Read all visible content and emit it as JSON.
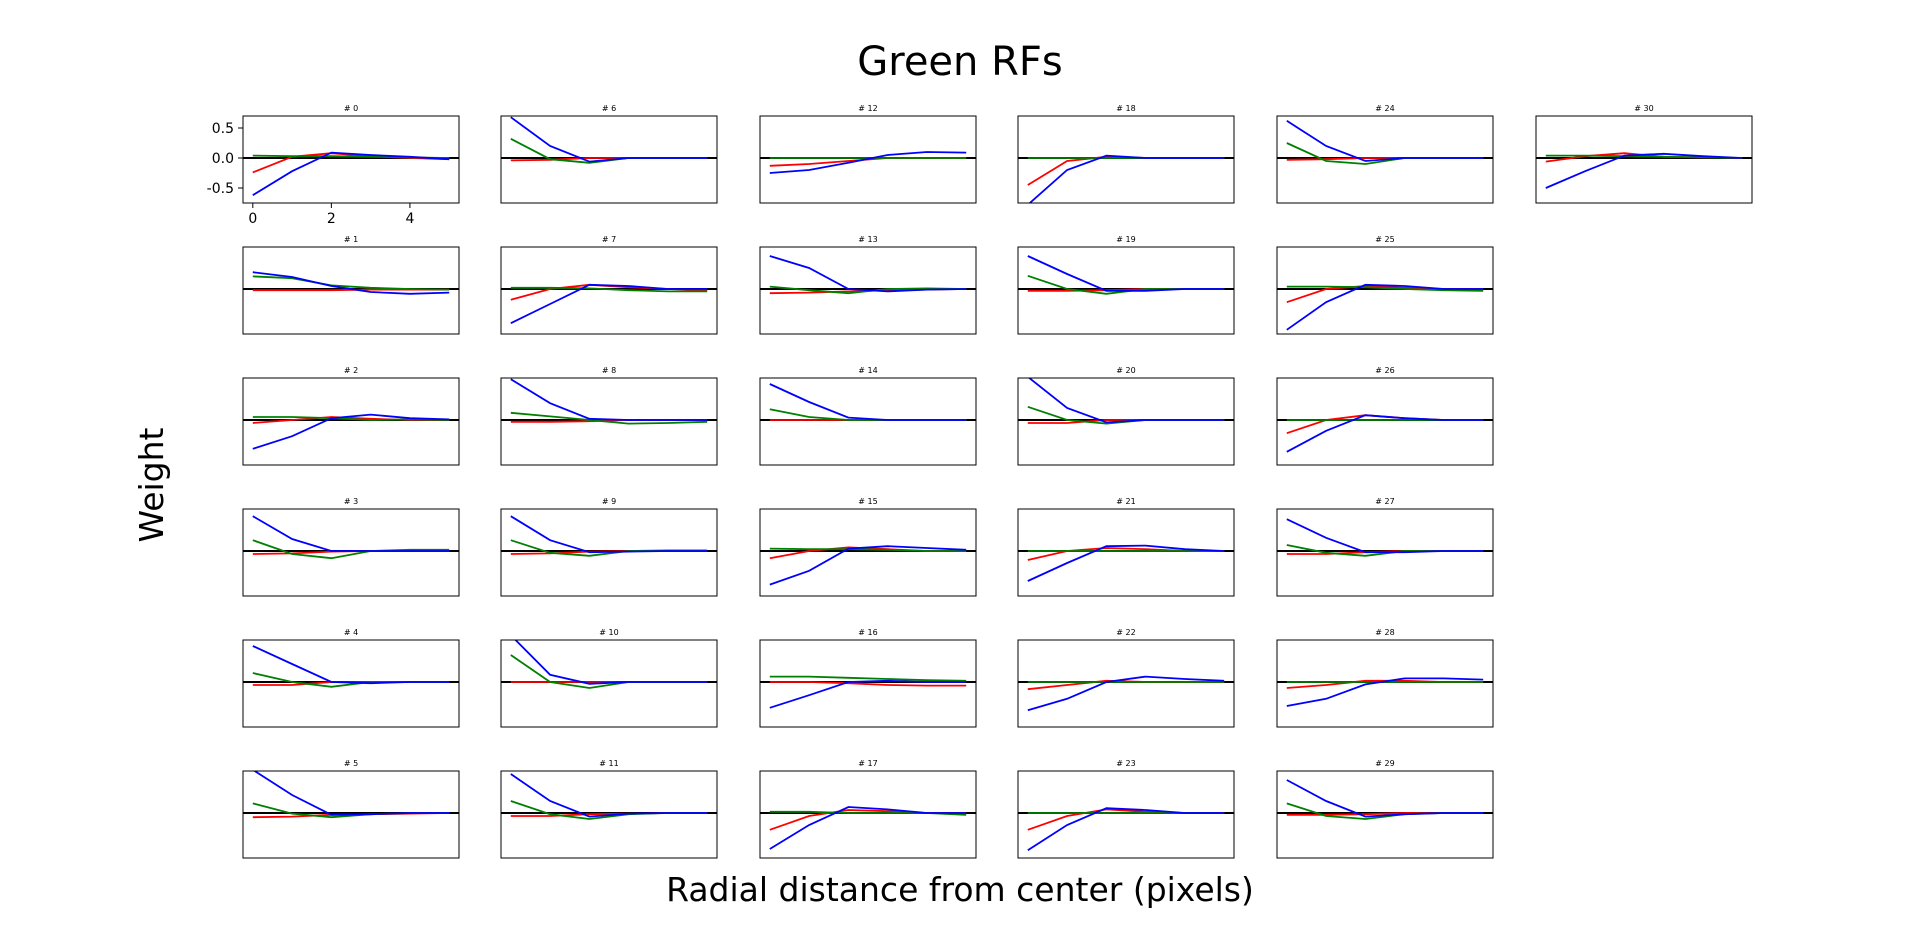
{
  "figure": {
    "title": "Green RFs",
    "xlabel": "Radial distance from center (pixels)",
    "ylabel": "Weight"
  },
  "colors": {
    "red": "#ff0000",
    "green": "#008000",
    "blue": "#0000ff",
    "axis": "#000000"
  },
  "chart_data": {
    "type": "line",
    "x": [
      0,
      1,
      2,
      3,
      4,
      5
    ],
    "xlim": [
      -0.25,
      5.25
    ],
    "ylim": [
      -0.75,
      0.7
    ],
    "xticks": [
      "0",
      "2",
      "4"
    ],
    "yticks": [
      "0.5",
      "0.0",
      "-0.5"
    ],
    "grid": false,
    "legend": "none",
    "panels": [
      {
        "title": "# 0",
        "red": [
          -0.24,
          0.02,
          0.08,
          0.03,
          0.0,
          -0.02
        ],
        "green": [
          0.04,
          0.03,
          0.03,
          0.02,
          0.01,
          0.0
        ],
        "blue": [
          -0.62,
          -0.22,
          0.09,
          0.05,
          0.02,
          -0.02
        ]
      },
      {
        "title": "# 1",
        "red": [
          -0.02,
          -0.02,
          -0.02,
          -0.01,
          -0.01,
          -0.01
        ],
        "green": [
          0.21,
          0.18,
          0.06,
          0.02,
          0.0,
          -0.01
        ],
        "blue": [
          0.28,
          0.2,
          0.05,
          -0.05,
          -0.08,
          -0.06
        ]
      },
      {
        "title": "# 2",
        "red": [
          -0.05,
          0.0,
          0.05,
          0.02,
          0.0,
          0.0
        ],
        "green": [
          0.05,
          0.05,
          0.03,
          0.0,
          0.01,
          0.0
        ],
        "blue": [
          -0.48,
          -0.27,
          0.03,
          0.09,
          0.03,
          0.01
        ]
      },
      {
        "title": "# 3",
        "red": [
          -0.05,
          -0.04,
          -0.01,
          0.0,
          0.0,
          0.0
        ],
        "green": [
          0.18,
          -0.05,
          -0.12,
          0.0,
          0.02,
          0.02
        ],
        "blue": [
          0.58,
          0.2,
          0.0,
          0.0,
          0.0,
          0.0
        ]
      },
      {
        "title": "# 4",
        "red": [
          -0.05,
          -0.05,
          0.0,
          0.0,
          0.0,
          0.0
        ],
        "green": [
          0.15,
          0.0,
          -0.08,
          0.0,
          0.0,
          0.0
        ],
        "blue": [
          0.6,
          0.3,
          0.0,
          -0.02,
          0.0,
          0.0
        ]
      },
      {
        "title": "# 5",
        "red": [
          -0.07,
          -0.06,
          -0.03,
          -0.02,
          -0.01,
          0.0
        ],
        "green": [
          0.16,
          -0.01,
          -0.07,
          -0.02,
          0.0,
          0.0
        ],
        "blue": [
          0.72,
          0.3,
          -0.03,
          -0.02,
          0.0,
          0.0
        ]
      },
      {
        "title": "# 6",
        "red": [
          -0.04,
          -0.03,
          0.0,
          0.0,
          0.0,
          0.0
        ],
        "green": [
          0.32,
          -0.02,
          -0.08,
          0.0,
          0.0,
          0.0
        ],
        "blue": [
          0.68,
          0.2,
          -0.06,
          0.0,
          0.0,
          0.0
        ]
      },
      {
        "title": "# 7",
        "red": [
          -0.18,
          0.0,
          0.07,
          0.03,
          0.0,
          -0.02
        ],
        "green": [
          0.02,
          0.02,
          0.01,
          -0.02,
          -0.04,
          -0.04
        ],
        "blue": [
          -0.57,
          -0.25,
          0.07,
          0.05,
          0.0,
          0.0
        ]
      },
      {
        "title": "# 8",
        "red": [
          -0.03,
          -0.03,
          -0.02,
          0.0,
          0.0,
          0.0
        ],
        "green": [
          0.12,
          0.06,
          0.0,
          -0.06,
          -0.05,
          -0.03
        ],
        "blue": [
          0.68,
          0.28,
          0.02,
          0.0,
          0.0,
          0.0
        ]
      },
      {
        "title": "# 9",
        "red": [
          -0.05,
          -0.04,
          -0.01,
          0.0,
          0.0,
          0.0
        ],
        "green": [
          0.18,
          -0.03,
          -0.08,
          0.0,
          0.01,
          0.01
        ],
        "blue": [
          0.58,
          0.18,
          -0.02,
          -0.01,
          0.0,
          0.0
        ]
      },
      {
        "title": "# 10",
        "red": [
          0.0,
          0.0,
          0.0,
          0.0,
          0.0,
          0.0
        ],
        "green": [
          0.45,
          0.0,
          -0.1,
          0.0,
          0.0,
          0.0
        ],
        "blue": [
          0.78,
          0.12,
          -0.03,
          0.0,
          0.0,
          0.0
        ]
      },
      {
        "title": "# 11",
        "red": [
          -0.05,
          -0.05,
          -0.02,
          -0.01,
          0.0,
          0.0
        ],
        "green": [
          0.2,
          -0.02,
          -0.1,
          -0.02,
          0.0,
          0.0
        ],
        "blue": [
          0.65,
          0.2,
          -0.06,
          -0.01,
          0.0,
          0.0
        ]
      },
      {
        "title": "# 12",
        "red": [
          -0.13,
          -0.1,
          -0.05,
          0.0,
          0.0,
          0.0
        ],
        "green": [
          0.0,
          0.0,
          0.0,
          0.0,
          0.0,
          0.0
        ],
        "blue": [
          -0.25,
          -0.2,
          -0.08,
          0.05,
          0.1,
          0.09
        ]
      },
      {
        "title": "# 13",
        "red": [
          -0.07,
          -0.06,
          -0.04,
          -0.02,
          -0.01,
          0.0
        ],
        "green": [
          0.04,
          -0.02,
          -0.07,
          0.0,
          0.01,
          0.0
        ],
        "blue": [
          0.55,
          0.35,
          0.0,
          -0.04,
          -0.01,
          0.0
        ]
      },
      {
        "title": "# 14",
        "red": [
          0.0,
          0.0,
          0.0,
          0.0,
          0.0,
          0.0
        ],
        "green": [
          0.18,
          0.05,
          0.0,
          0.0,
          0.0,
          0.0
        ],
        "blue": [
          0.6,
          0.3,
          0.04,
          0.0,
          0.0,
          0.0
        ]
      },
      {
        "title": "# 15",
        "red": [
          -0.12,
          0.0,
          0.06,
          0.03,
          0.0,
          0.0
        ],
        "green": [
          0.04,
          0.03,
          0.03,
          0.02,
          0.0,
          0.0
        ],
        "blue": [
          -0.56,
          -0.33,
          0.04,
          0.08,
          0.05,
          0.02
        ]
      },
      {
        "title": "# 16",
        "red": [
          0.0,
          0.0,
          -0.02,
          -0.05,
          -0.06,
          -0.06
        ],
        "green": [
          0.09,
          0.09,
          0.07,
          0.05,
          0.03,
          0.02
        ],
        "blue": [
          -0.43,
          -0.22,
          0.0,
          0.02,
          0.0,
          0.0
        ]
      },
      {
        "title": "# 17",
        "red": [
          -0.28,
          -0.05,
          0.05,
          0.03,
          0.0,
          0.0
        ],
        "green": [
          0.02,
          0.02,
          0.0,
          0.0,
          0.0,
          -0.03
        ],
        "blue": [
          -0.6,
          -0.2,
          0.1,
          0.06,
          0.0,
          0.0
        ]
      },
      {
        "title": "# 18",
        "red": [
          -0.45,
          -0.05,
          0.02,
          0.0,
          0.0,
          0.0
        ],
        "green": [
          0.0,
          0.0,
          0.0,
          0.0,
          0.0,
          0.0
        ],
        "blue": [
          -0.78,
          -0.2,
          0.04,
          0.0,
          0.0,
          0.0
        ]
      },
      {
        "title": "# 19",
        "red": [
          -0.03,
          -0.03,
          -0.02,
          0.0,
          0.0,
          0.0
        ],
        "green": [
          0.22,
          0.0,
          -0.08,
          0.0,
          0.0,
          0.0
        ],
        "blue": [
          0.55,
          0.25,
          -0.03,
          -0.03,
          0.0,
          0.0
        ]
      },
      {
        "title": "# 20",
        "red": [
          -0.05,
          -0.05,
          0.0,
          0.0,
          0.0,
          0.0
        ],
        "green": [
          0.22,
          0.0,
          -0.06,
          0.0,
          0.0,
          0.0
        ],
        "blue": [
          0.72,
          0.2,
          -0.04,
          0.0,
          0.0,
          0.0
        ]
      },
      {
        "title": "# 21",
        "red": [
          -0.15,
          0.0,
          0.05,
          0.03,
          0.0,
          0.0
        ],
        "green": [
          0.0,
          0.0,
          0.0,
          0.0,
          0.0,
          0.0
        ],
        "blue": [
          -0.5,
          -0.2,
          0.08,
          0.09,
          0.03,
          0.0
        ]
      },
      {
        "title": "# 22",
        "red": [
          -0.12,
          -0.05,
          0.02,
          0.0,
          0.0,
          0.0
        ],
        "green": [
          0.0,
          0.0,
          0.0,
          0.0,
          0.0,
          0.0
        ],
        "blue": [
          -0.47,
          -0.28,
          0.0,
          0.09,
          0.05,
          0.02
        ]
      },
      {
        "title": "# 23",
        "red": [
          -0.28,
          -0.05,
          0.06,
          0.02,
          0.0,
          0.0
        ],
        "green": [
          0.0,
          0.0,
          0.0,
          0.0,
          0.0,
          0.0
        ],
        "blue": [
          -0.62,
          -0.2,
          0.08,
          0.05,
          0.0,
          0.0
        ]
      },
      {
        "title": "# 24",
        "red": [
          -0.03,
          -0.02,
          0.0,
          0.0,
          0.0,
          0.0
        ],
        "green": [
          0.25,
          -0.05,
          -0.1,
          0.0,
          0.0,
          0.0
        ],
        "blue": [
          0.62,
          0.2,
          -0.05,
          0.0,
          0.0,
          0.0
        ]
      },
      {
        "title": "# 25",
        "red": [
          -0.22,
          0.0,
          0.05,
          0.02,
          0.0,
          0.0
        ],
        "green": [
          0.04,
          0.04,
          0.03,
          0.0,
          -0.02,
          -0.03
        ],
        "blue": [
          -0.68,
          -0.22,
          0.07,
          0.05,
          0.0,
          0.0
        ]
      },
      {
        "title": "# 26",
        "red": [
          -0.22,
          0.0,
          0.08,
          0.03,
          0.0,
          0.0
        ],
        "green": [
          0.0,
          0.0,
          0.0,
          0.0,
          0.0,
          0.0
        ],
        "blue": [
          -0.53,
          -0.18,
          0.08,
          0.03,
          0.0,
          0.0
        ]
      },
      {
        "title": "# 27",
        "red": [
          -0.05,
          -0.05,
          -0.02,
          0.0,
          0.0,
          0.0
        ],
        "green": [
          0.1,
          -0.03,
          -0.08,
          0.0,
          0.0,
          0.0
        ],
        "blue": [
          0.53,
          0.22,
          -0.02,
          -0.02,
          0.0,
          0.0
        ]
      },
      {
        "title": "# 28",
        "red": [
          -0.1,
          -0.05,
          0.02,
          0.02,
          0.0,
          0.0
        ],
        "green": [
          0.0,
          0.0,
          0.0,
          0.0,
          0.0,
          0.0
        ],
        "blue": [
          -0.4,
          -0.28,
          -0.04,
          0.06,
          0.06,
          0.04
        ]
      },
      {
        "title": "# 29",
        "red": [
          -0.03,
          -0.03,
          -0.02,
          0.0,
          0.0,
          0.0
        ],
        "green": [
          0.16,
          -0.05,
          -0.1,
          -0.02,
          0.0,
          0.0
        ],
        "blue": [
          0.55,
          0.2,
          -0.06,
          -0.02,
          0.0,
          0.0
        ]
      },
      {
        "title": "# 30",
        "red": [
          -0.06,
          0.03,
          0.08,
          0.02,
          0.01,
          0.0
        ],
        "green": [
          0.04,
          0.04,
          0.03,
          0.02,
          0.01,
          0.0
        ],
        "blue": [
          -0.5,
          -0.22,
          0.04,
          0.07,
          0.03,
          0.0
        ]
      }
    ]
  }
}
